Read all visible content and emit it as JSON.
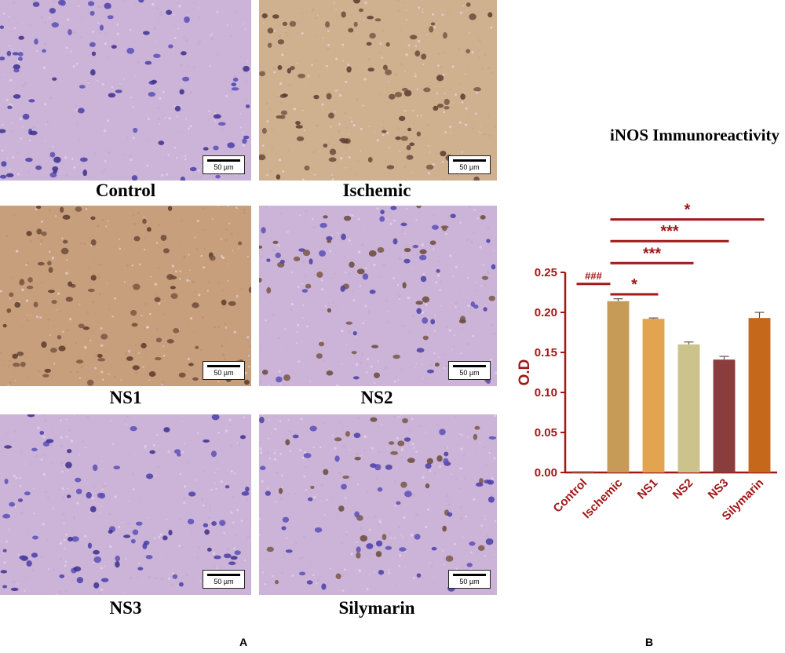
{
  "panels": [
    {
      "label": "Control",
      "scale": "50 µm",
      "tone": "violet",
      "cells": "blue"
    },
    {
      "label": "Ischemic",
      "scale": "50 µm",
      "tone": "tan",
      "cells": "brown"
    },
    {
      "label": "NS1",
      "scale": "50 µm",
      "tone": "brown",
      "cells": "brown"
    },
    {
      "label": "NS2",
      "scale": "50 µm",
      "tone": "violet",
      "cells": "mixed"
    },
    {
      "label": "NS3",
      "scale": "50 µm",
      "tone": "violet",
      "cells": "blue"
    },
    {
      "label": "Silymarin",
      "scale": "50 µm",
      "tone": "violet",
      "cells": "mixed"
    }
  ],
  "panel_letters": {
    "a": "A",
    "b": "B"
  },
  "chart_data": {
    "type": "bar",
    "title": "iNOS Immunoreactivity",
    "ylabel": "O.D",
    "xlabel": "",
    "categories": [
      "Control",
      "Ischemic",
      "NS1",
      "NS2",
      "NS3",
      "Silymarin"
    ],
    "values": [
      0.0,
      0.214,
      0.192,
      0.16,
      0.141,
      0.193
    ],
    "errors": [
      0.0,
      0.003,
      0.001,
      0.003,
      0.004,
      0.007
    ],
    "colors": [
      "#c69a57",
      "#c69a57",
      "#e3a451",
      "#cbc28c",
      "#8a3d3d",
      "#c6681c"
    ],
    "ylim": [
      0,
      0.25
    ],
    "yticks": [
      "0.00",
      "0.05",
      "0.10",
      "0.15",
      "0.20",
      "0.25"
    ],
    "axis_color": "#a01818",
    "significance": [
      {
        "from": "Control",
        "to": "Ischemic",
        "label": "###"
      },
      {
        "from": "Ischemic",
        "to": "NS1",
        "label": "*"
      },
      {
        "from": "Ischemic",
        "to": "NS2",
        "label": "***"
      },
      {
        "from": "Ischemic",
        "to": "NS3",
        "label": "***"
      },
      {
        "from": "Ischemic",
        "to": "Silymarin",
        "label": "*"
      }
    ]
  }
}
